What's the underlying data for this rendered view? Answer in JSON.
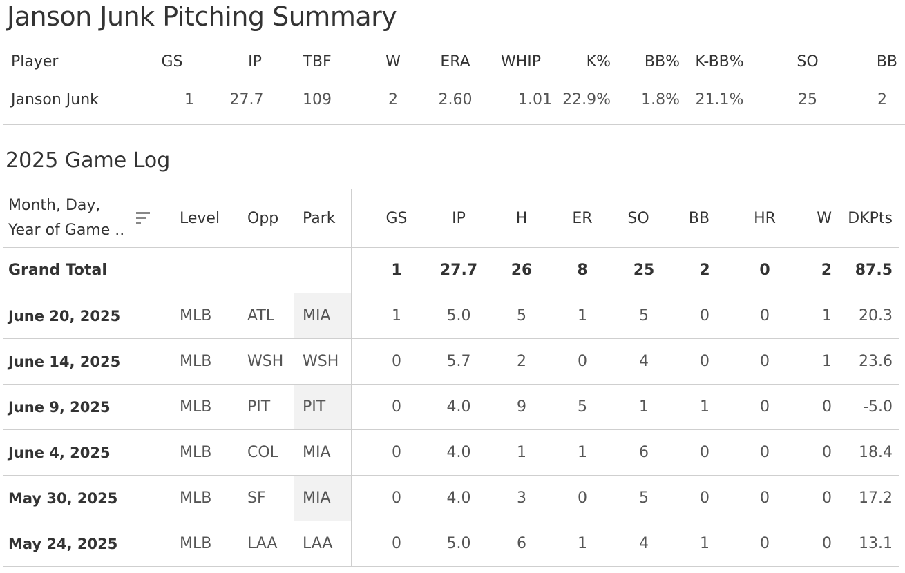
{
  "title": "Janson Junk Pitching Summary",
  "summary": {
    "headers": [
      "Player",
      "GS",
      "IP",
      "TBF",
      "W",
      "ERA",
      "WHIP",
      "K%",
      "BB%",
      "K-BB%",
      "SO",
      "BB"
    ],
    "row": [
      "Janson Junk",
      "1",
      "27.7",
      "109",
      "2",
      "2.60",
      "1.01",
      "22.9%",
      "1.8%",
      "21.1%",
      "25",
      "2"
    ]
  },
  "game_log": {
    "title": "2025 Game Log",
    "headers": {
      "date_line1": "Month, Day,",
      "date_line2": "Year of Game ..",
      "cols": [
        "Level",
        "Opp",
        "Park",
        "GS",
        "IP",
        "H",
        "ER",
        "SO",
        "BB",
        "HR",
        "W",
        "DKPts"
      ]
    },
    "total": {
      "label": "Grand Total",
      "values": [
        "1",
        "27.7",
        "26",
        "8",
        "25",
        "2",
        "0",
        "2",
        "87.5"
      ]
    },
    "rows": [
      {
        "date": "June 20, 2025",
        "level": "MLB",
        "opp": "ATL",
        "park": "MIA",
        "park_shaded": true,
        "values": [
          "1",
          "5.0",
          "5",
          "1",
          "5",
          "0",
          "0",
          "1",
          "20.3"
        ]
      },
      {
        "date": "June 14, 2025",
        "level": "MLB",
        "opp": "WSH",
        "park": "WSH",
        "park_shaded": false,
        "values": [
          "0",
          "5.7",
          "2",
          "0",
          "4",
          "0",
          "0",
          "1",
          "23.6"
        ]
      },
      {
        "date": "June 9, 2025",
        "level": "MLB",
        "opp": "PIT",
        "park": "PIT",
        "park_shaded": true,
        "values": [
          "0",
          "4.0",
          "9",
          "5",
          "1",
          "1",
          "0",
          "0",
          "-5.0"
        ]
      },
      {
        "date": "June 4, 2025",
        "level": "MLB",
        "opp": "COL",
        "park": "MIA",
        "park_shaded": false,
        "values": [
          "0",
          "4.0",
          "1",
          "1",
          "6",
          "0",
          "0",
          "0",
          "18.4"
        ]
      },
      {
        "date": "May 30, 2025",
        "level": "MLB",
        "opp": "SF",
        "park": "MIA",
        "park_shaded": true,
        "values": [
          "0",
          "4.0",
          "3",
          "0",
          "5",
          "0",
          "0",
          "0",
          "17.2"
        ]
      },
      {
        "date": "May 24, 2025",
        "level": "MLB",
        "opp": "LAA",
        "park": "LAA",
        "park_shaded": false,
        "values": [
          "0",
          "5.0",
          "6",
          "1",
          "4",
          "1",
          "0",
          "0",
          "13.1"
        ]
      }
    ]
  },
  "icons": {
    "sort": "sort-descending-icon"
  }
}
